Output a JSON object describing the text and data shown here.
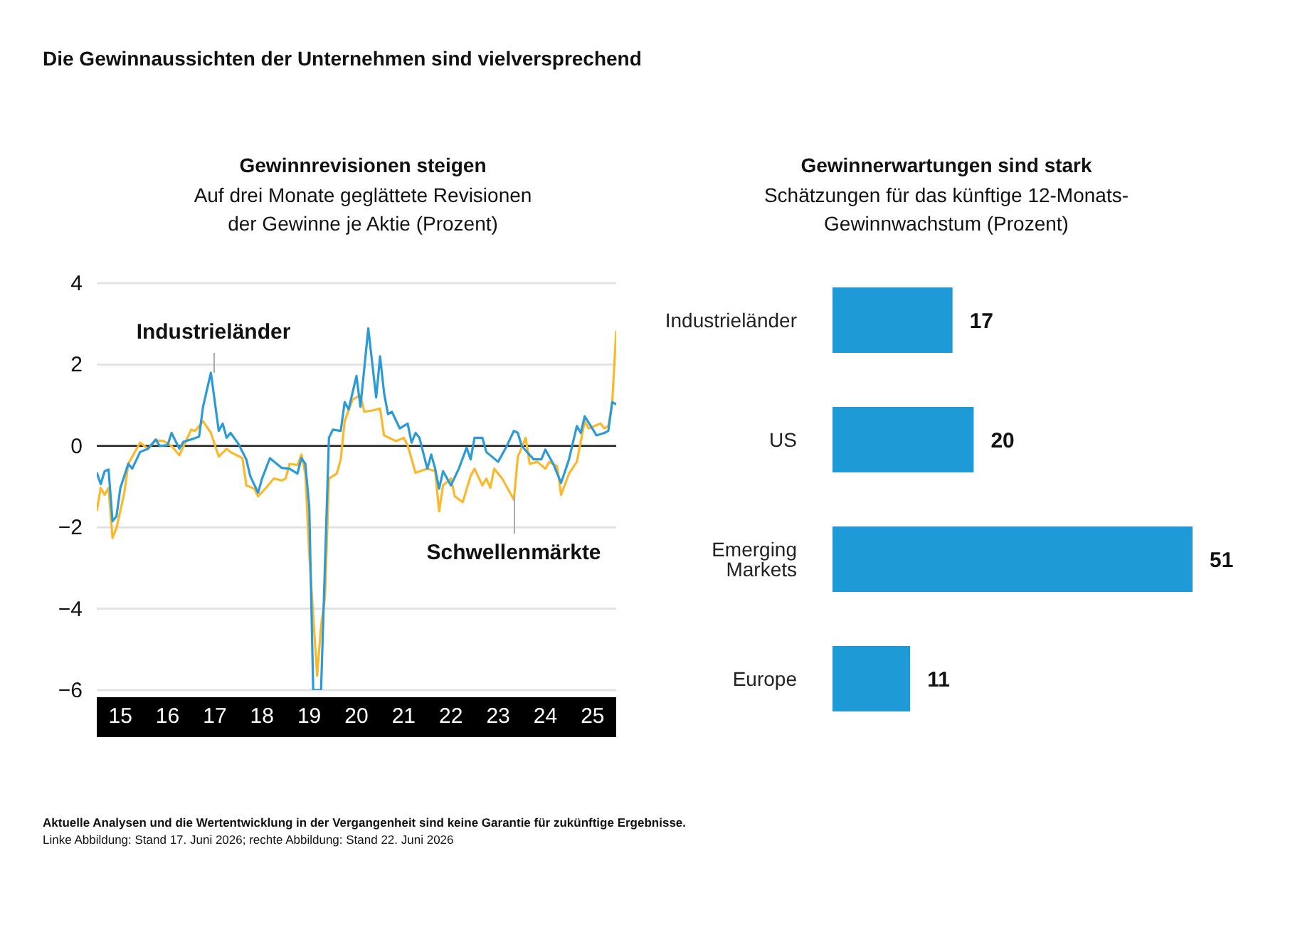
{
  "chart_data": [
    {
      "type": "line",
      "title": "Gewinnrevisionen steigen",
      "subtitle": "Auf drei Monate geglättete Revisionen der Gewinne je Aktie (Prozent)",
      "annotations": [
        "Die Gewinnaussichten der Unternehmen sind vielversprechend",
        "Aktuelle Analysen und die Wertentwicklung in der Vergangenheit sind keine Garantie für zukünftige Ergebnisse.",
        "Linke Abbildung: Stand 17. Juni 2026; rechte Abbildung: Stand 22. Juni 2026"
      ],
      "xlim": [
        "2015-01",
        "2026-01"
      ],
      "xticks": [
        {
          "value": "2015-07",
          "label": "15"
        },
        {
          "value": "2016-07",
          "label": "16"
        },
        {
          "value": "2017-07",
          "label": "17"
        },
        {
          "value": "2018-07",
          "label": "18"
        },
        {
          "value": "2019-07",
          "label": "19"
        },
        {
          "value": "2020-07",
          "label": "20"
        },
        {
          "value": "2021-07",
          "label": "21"
        },
        {
          "value": "2022-07",
          "label": "22"
        },
        {
          "value": "2023-07",
          "label": "23"
        },
        {
          "value": "2024-07",
          "label": "24"
        },
        {
          "value": "2025-07",
          "label": "25"
        }
      ],
      "ylim": [
        -6,
        4
      ],
      "yticks": [
        {
          "value": -6,
          "label": "−6"
        },
        {
          "value": -4,
          "label": "−4"
        },
        {
          "value": -2,
          "label": "−2"
        },
        0,
        2,
        4
      ],
      "grid": "y",
      "legend": false,
      "ref_lines": [
        {
          "axis": "y",
          "value": 0,
          "color": "#222222"
        }
      ],
      "series": [
        {
          "name": "Industrieländer",
          "color": "#2b9ad6",
          "x": [
            "2015-01",
            "2015-02",
            "2015-03",
            "2015-04",
            "2015-05",
            "2015-06",
            "2015-07",
            "2015-09",
            "2015-10",
            "2015-12",
            "2016-02",
            "2016-04",
            "2016-05",
            "2016-07",
            "2016-08",
            "2016-10",
            "2016-11",
            "2017-01",
            "2017-03",
            "2017-04",
            "2017-06",
            "2017-07",
            "2017-08",
            "2017-09",
            "2017-10",
            "2017-11",
            "2018-01",
            "2018-03",
            "2018-04",
            "2018-06",
            "2018-07",
            "2018-09",
            "2018-12",
            "2019-02",
            "2019-04",
            "2019-05",
            "2019-06",
            "2019-07",
            "2019-08",
            "2019-10",
            "2019-12",
            "2020-01",
            "2020-03",
            "2020-04",
            "2020-05",
            "2020-07",
            "2020-08",
            "2020-10",
            "2020-12",
            "2021-01",
            "2021-02",
            "2021-03",
            "2021-04",
            "2021-06",
            "2021-08",
            "2021-09",
            "2021-10",
            "2021-11",
            "2022-01",
            "2022-02",
            "2022-03",
            "2022-04",
            "2022-05",
            "2022-07",
            "2022-09",
            "2022-11",
            "2022-12",
            "2023-01",
            "2023-03",
            "2023-04",
            "2023-07",
            "2023-09",
            "2023-11",
            "2023-12",
            "2024-01",
            "2024-04",
            "2024-06",
            "2024-07",
            "2024-09",
            "2024-11",
            "2025-01",
            "2025-03",
            "2025-04",
            "2025-05",
            "2025-08",
            "2025-10",
            "2025-11",
            "2025-12",
            "2026-01"
          ],
          "values": [
            -0.65,
            -0.94,
            -0.62,
            -0.58,
            -1.85,
            -1.73,
            -1.03,
            -0.44,
            -0.56,
            -0.15,
            -0.07,
            0.16,
            0,
            0.02,
            0.32,
            -0.07,
            0.1,
            0.16,
            0.23,
            0.96,
            1.8,
            1.08,
            0.37,
            0.55,
            0.2,
            0.32,
            0.05,
            -0.33,
            -0.74,
            -1.15,
            -0.8,
            -0.3,
            -0.54,
            -0.56,
            -0.68,
            -0.3,
            -0.44,
            -1.5,
            -6,
            -6,
            0.2,
            0.4,
            0.37,
            1.08,
            0.9,
            1.72,
            0.96,
            2.89,
            1.19,
            2.2,
            1.31,
            0.78,
            0.84,
            0.43,
            0.55,
            0.08,
            0.32,
            0.2,
            -0.56,
            -0.21,
            -0.56,
            -1.05,
            -0.62,
            -0.97,
            -0.56,
            -0.04,
            -0.33,
            0.2,
            0.2,
            -0.15,
            -0.39,
            -0.04,
            0.37,
            0.32,
            0,
            -0.33,
            -0.33,
            -0.09,
            -0.44,
            -0.91,
            -0.33,
            0.49,
            0.32,
            0.73,
            0.26,
            0.32,
            0.37,
            1.08,
            1.02
          ]
        },
        {
          "name": "Schwellenmärkte",
          "color": "#fbb82b",
          "x": [
            "2015-01",
            "2015-02",
            "2015-03",
            "2015-04",
            "2015-05",
            "2015-06",
            "2015-08",
            "2015-09",
            "2015-11",
            "2015-12",
            "2016-02",
            "2016-04",
            "2016-06",
            "2016-08",
            "2016-10",
            "2017-01",
            "2017-02",
            "2017-04",
            "2017-06",
            "2017-08",
            "2017-10",
            "2017-11",
            "2018-02",
            "2018-03",
            "2018-05",
            "2018-06",
            "2018-08",
            "2018-10",
            "2018-12",
            "2019-01",
            "2019-02",
            "2019-04",
            "2019-05",
            "2019-06",
            "2019-07",
            "2019-09",
            "2019-10",
            "2019-11",
            "2019-12",
            "2020-02",
            "2020-03",
            "2020-04",
            "2020-06",
            "2020-08",
            "2020-09",
            "2020-11",
            "2021-01",
            "2021-02",
            "2021-05",
            "2021-07",
            "2021-08",
            "2021-10",
            "2022-01",
            "2022-03",
            "2022-04",
            "2022-05",
            "2022-07",
            "2022-08",
            "2022-10",
            "2022-12",
            "2023-01",
            "2023-03",
            "2023-04",
            "2023-05",
            "2023-06",
            "2023-08",
            "2023-11",
            "2023-12",
            "2024-02",
            "2024-03",
            "2024-05",
            "2024-07",
            "2024-08",
            "2024-10",
            "2024-11",
            "2025-01",
            "2025-03",
            "2025-05",
            "2025-06",
            "2025-09",
            "2025-10",
            "2025-11",
            "2025-12",
            "2026-01"
          ],
          "values": [
            -1.6,
            -1.03,
            -1.2,
            -1.03,
            -2.26,
            -2.02,
            -1.15,
            -0.44,
            -0.09,
            0.08,
            -0.07,
            0.14,
            0.12,
            0,
            -0.23,
            0.4,
            0.37,
            0.61,
            0.32,
            -0.26,
            -0.07,
            -0.15,
            -0.3,
            -0.97,
            -1.05,
            -1.24,
            -1.03,
            -0.8,
            -0.85,
            -0.8,
            -0.44,
            -0.47,
            -0.21,
            -0.68,
            -2.67,
            -5.65,
            -4.42,
            -3.72,
            -0.8,
            -0.68,
            -0.33,
            0.61,
            1.14,
            1.25,
            0.84,
            0.87,
            0.92,
            0.26,
            0.12,
            0.2,
            0.02,
            -0.66,
            -0.56,
            -0.62,
            -1.61,
            -0.97,
            -0.8,
            -1.24,
            -1.38,
            -0.74,
            -0.56,
            -0.97,
            -0.8,
            -1.03,
            -0.56,
            -0.8,
            -1.32,
            -0.27,
            0.2,
            -0.44,
            -0.39,
            -0.56,
            -0.39,
            -0.5,
            -1.2,
            -0.68,
            -0.39,
            0.61,
            0.43,
            0.55,
            0.43,
            0.49,
            1.08,
            2.83
          ]
        }
      ]
    },
    {
      "type": "bar",
      "orientation": "horizontal",
      "title": "Gewinnerwartungen sind stark",
      "subtitle": "Schätzungen für das künftige 12-Monats-Gewinnwachstum (Prozent)",
      "categories": [
        "Industrieländer",
        "US",
        "Emerging Markets",
        "Europe"
      ],
      "values": [
        17,
        20,
        51,
        11
      ],
      "color": "#1e9bd7",
      "data_labels": true
    }
  ]
}
